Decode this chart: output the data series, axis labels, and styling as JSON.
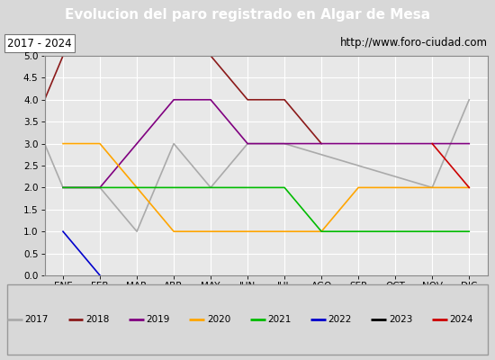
{
  "title": "Evolucion del paro registrado en Algar de Mesa",
  "subtitle_left": "2017 - 2024",
  "subtitle_right": "http://www.foro-ciudad.com",
  "xlabel_months": [
    "ENE",
    "FEB",
    "MAR",
    "ABR",
    "MAY",
    "JUN",
    "JUL",
    "AGO",
    "SEP",
    "OCT",
    "NOV",
    "DIC"
  ],
  "ylim": [
    0.0,
    5.0
  ],
  "yticks": [
    0.0,
    0.5,
    1.0,
    1.5,
    2.0,
    2.5,
    3.0,
    3.5,
    4.0,
    4.5,
    5.0
  ],
  "series": {
    "2017": {
      "color": "#aaaaaa",
      "x": [
        -0.5,
        0,
        1,
        2,
        3,
        4,
        5,
        6,
        10,
        11
      ],
      "y": [
        3,
        2,
        2,
        1,
        3,
        2,
        3,
        3,
        2,
        4
      ]
    },
    "2018": {
      "color": "#8b1a1a",
      "x": [
        -0.5,
        0,
        1,
        2,
        3,
        4,
        5,
        6,
        7
      ],
      "y": [
        4,
        5,
        5,
        5,
        5,
        5,
        4,
        4,
        3
      ]
    },
    "2019": {
      "color": "#800080",
      "x": [
        0,
        1,
        2,
        3,
        4,
        5,
        6,
        7,
        8,
        9,
        10,
        11
      ],
      "y": [
        2,
        2,
        3,
        4,
        4,
        3,
        3,
        3,
        3,
        3,
        3,
        3
      ]
    },
    "2020": {
      "color": "#ffa500",
      "x": [
        0,
        1,
        2,
        3,
        4,
        5,
        6,
        7,
        8,
        9,
        10,
        11
      ],
      "y": [
        3,
        3,
        2,
        1,
        1,
        1,
        1,
        1,
        2,
        2,
        2,
        2
      ]
    },
    "2021": {
      "color": "#00bb00",
      "x": [
        0,
        1,
        2,
        3,
        4,
        5,
        6,
        7,
        8,
        9,
        10,
        11
      ],
      "y": [
        2,
        2,
        2,
        2,
        2,
        2,
        2,
        1,
        1,
        1,
        1,
        1
      ]
    },
    "2022": {
      "color": "#0000cc",
      "x": [
        0,
        1
      ],
      "y": [
        1,
        0
      ]
    },
    "2023": {
      "color": "#000000",
      "x": [],
      "y": []
    },
    "2024": {
      "color": "#cc0000",
      "x": [
        10,
        11
      ],
      "y": [
        3,
        2
      ]
    }
  },
  "title_bgcolor": "#4c7fc4",
  "title_fgcolor": "#ffffff",
  "subtitle_bgcolor": "#d8d8d8",
  "plot_bgcolor": "#e8e8e8",
  "grid_color": "#ffffff",
  "legend_bgcolor": "#d8d8d8",
  "legend_border": "#999999",
  "fig_bgcolor": "#d8d8d8"
}
